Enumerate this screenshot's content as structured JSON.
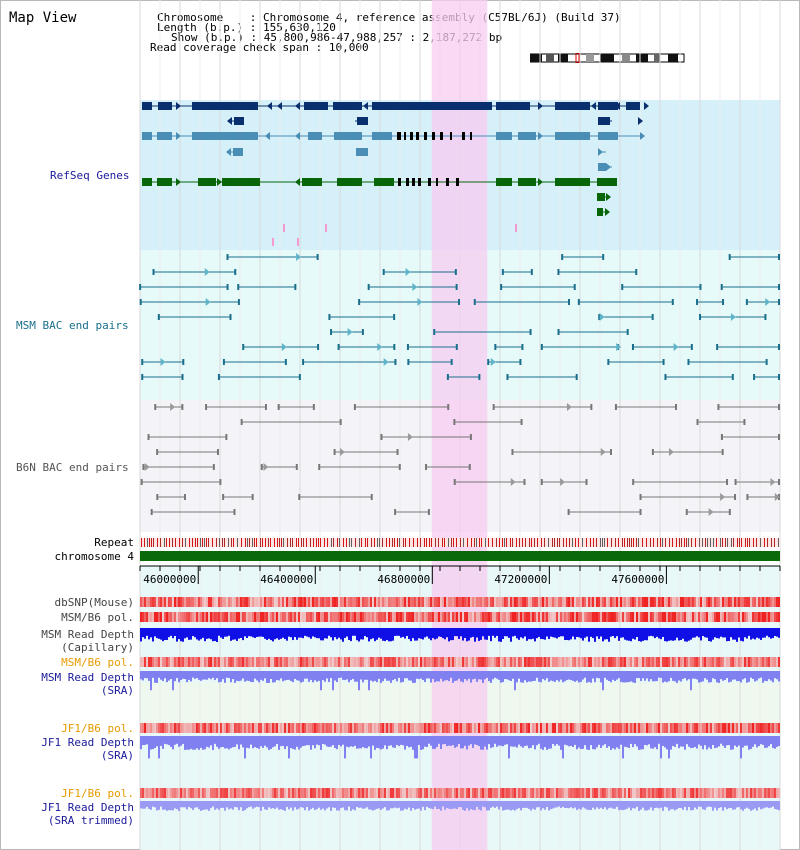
{
  "window": {
    "title": "Map View"
  },
  "info": {
    "chromosome_key": "Chromosome",
    "chromosome_value": "Chromosome 4, reference assembly (C57BL/6J) (Build 37)",
    "length_key": "Length (b.p.)",
    "length_value": "155,630,120",
    "show_key": "Show (b.p.)",
    "show_value": "45,800,986-47,988,257 : 2,187,272 bp",
    "span_key": "Read coverage check span",
    "span_value": "10,000"
  },
  "view": {
    "start_bp": 45800986,
    "end_bp": 47988257,
    "highlight_bp": [
      46798000,
      46988000
    ]
  },
  "sections": {
    "refseq": "RefSeq Genes",
    "msm_bac": "MSM BAC end pairs",
    "b6n_bac": "B6N BAC end pairs"
  },
  "tracks": {
    "repeat": "Repeat",
    "chromosome": "chromosome 4",
    "dbsnp": "dbSNP(Mouse)",
    "msm_b6_pol": "MSM/B6 pol.",
    "msm_depth_cap_1": "MSM Read Depth",
    "msm_depth_cap_2": "(Capillary)",
    "msm_b6_pol_2": "MSM/B6 pol.",
    "msm_depth_sra_1": "MSM Read Depth",
    "msm_depth_sra_2": "(SRA)",
    "jf1_b6_pol": "JF1/B6 pol.",
    "jf1_depth_sra_1": "JF1 Read Depth",
    "jf1_depth_sra_2": "(SRA)",
    "jf1_b6_pol_2": "JF1/B6 pol.",
    "jf1_depth_trim_1": "JF1 Read Depth",
    "jf1_depth_trim_2": "(SRA trimmed)"
  },
  "ruler": {
    "ticks": [
      "46000000",
      "46400000",
      "46800000",
      "47200000",
      "47600000"
    ],
    "tick_bp": [
      46000000,
      46400000,
      46800000,
      47200000,
      47600000
    ]
  },
  "colors": {
    "refseq_bg": "#d6f0fa",
    "msm_bg": "#e6fafa",
    "b6n_bg": "#f4f4f8",
    "highlight": "#f7ccf0",
    "gene_navy": "#0a2f6e",
    "gene_steel": "#4a8db5",
    "gene_green": "#086608",
    "bac_teal": "#1a6f8c",
    "bac_grey": "#777777",
    "chromosome": "#0a6a0a",
    "depth_blue": "#1010e6",
    "depth_light": "#8080f0",
    "orange_label": "#e69a00",
    "blue_label": "#1a1a9a",
    "teal_label": "#1a6f8c"
  }
}
